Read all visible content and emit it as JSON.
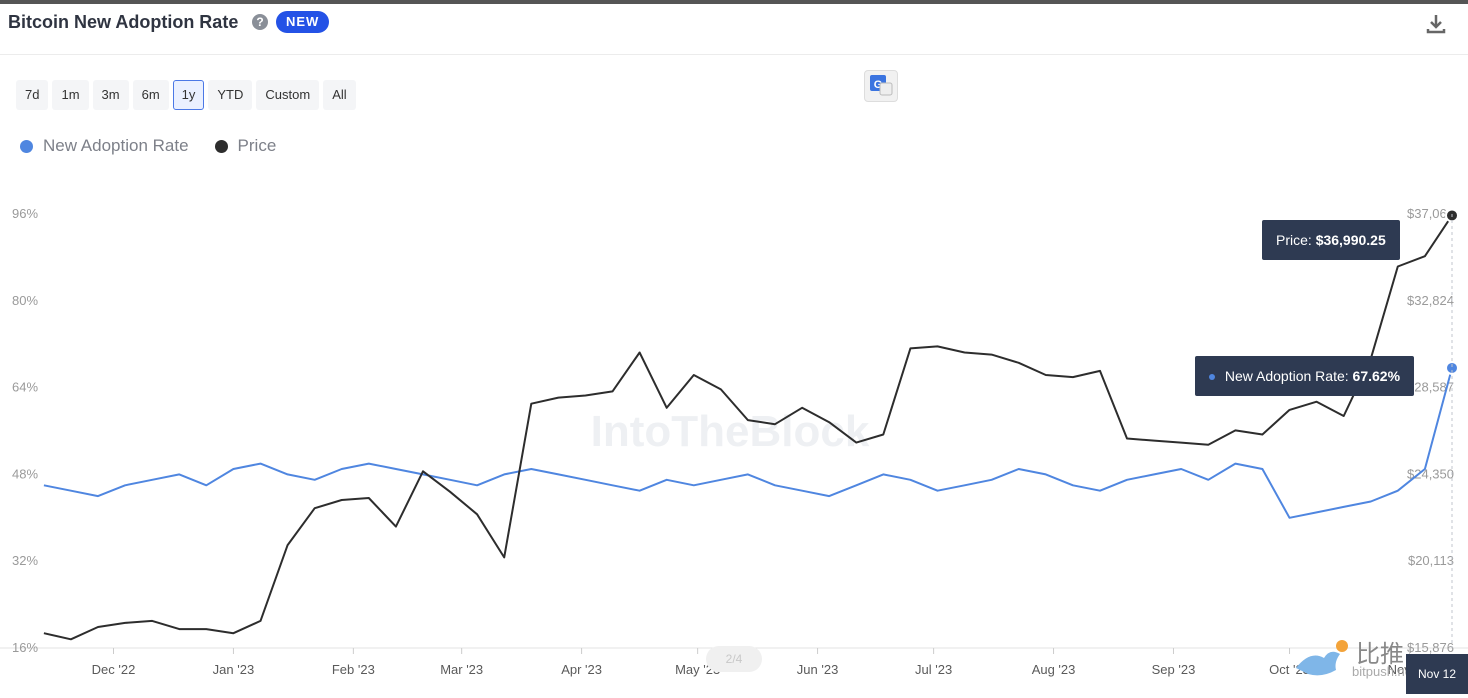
{
  "header": {
    "title": "Bitcoin New Adoption Rate",
    "badge": "NEW"
  },
  "range_buttons": [
    "7d",
    "1m",
    "3m",
    "6m",
    "1y",
    "YTD",
    "Custom",
    "All"
  ],
  "range_active": "1y",
  "legend": {
    "rate": "New Adoption Rate",
    "price": "Price"
  },
  "colors": {
    "rate": "#4f86e0",
    "price": "#2d2d2d",
    "badge": "#2452e6",
    "tooltip": "#2e3a52"
  },
  "tooltips": {
    "price_label": "Price:",
    "price_value": "$36,990.25",
    "rate_label": "New Adoption Rate:",
    "rate_value": "67.62%"
  },
  "pager_text": "2/4",
  "date_chip": "Nov 12",
  "watermark": {
    "brand": "IntoTheBlock",
    "cn": "比推",
    "site": "bitpush.news"
  },
  "chart_data": {
    "type": "line",
    "xlabels": [
      "Dec '22",
      "Jan '23",
      "Feb '23",
      "Mar '23",
      "Apr '23",
      "May '23",
      "Jun '23",
      "Jul '23",
      "Aug '23",
      "Sep '23",
      "Oct '23",
      "Nov '23"
    ],
    "left_axis": {
      "ticks": [
        "96%",
        "80%",
        "64%",
        "48%",
        "32%",
        "16%"
      ],
      "range": [
        16,
        96
      ]
    },
    "right_axis": {
      "ticks": [
        "$37,061",
        "$32,824",
        "$28,587",
        "$24,350",
        "$20,113",
        "$15,876"
      ],
      "range": [
        15876,
        37061
      ]
    },
    "series": [
      {
        "name": "New Adoption Rate",
        "axis": "left",
        "points": [
          [
            "2022-11-13",
            46
          ],
          [
            "2022-11-20",
            45
          ],
          [
            "2022-11-27",
            44
          ],
          [
            "2022-12-04",
            46
          ],
          [
            "2022-12-11",
            47
          ],
          [
            "2022-12-18",
            48
          ],
          [
            "2022-12-25",
            46
          ],
          [
            "2023-01-01",
            49
          ],
          [
            "2023-01-08",
            50
          ],
          [
            "2023-01-15",
            48
          ],
          [
            "2023-01-22",
            47
          ],
          [
            "2023-01-29",
            49
          ],
          [
            "2023-02-05",
            50
          ],
          [
            "2023-02-12",
            49
          ],
          [
            "2023-02-19",
            48
          ],
          [
            "2023-02-26",
            47
          ],
          [
            "2023-03-05",
            46
          ],
          [
            "2023-03-12",
            48
          ],
          [
            "2023-03-19",
            49
          ],
          [
            "2023-03-26",
            48
          ],
          [
            "2023-04-02",
            47
          ],
          [
            "2023-04-09",
            46
          ],
          [
            "2023-04-16",
            45
          ],
          [
            "2023-04-23",
            47
          ],
          [
            "2023-04-30",
            46
          ],
          [
            "2023-05-07",
            47
          ],
          [
            "2023-05-14",
            48
          ],
          [
            "2023-05-21",
            46
          ],
          [
            "2023-05-28",
            45
          ],
          [
            "2023-06-04",
            44
          ],
          [
            "2023-06-11",
            46
          ],
          [
            "2023-06-18",
            48
          ],
          [
            "2023-06-25",
            47
          ],
          [
            "2023-07-02",
            45
          ],
          [
            "2023-07-09",
            46
          ],
          [
            "2023-07-16",
            47
          ],
          [
            "2023-07-23",
            49
          ],
          [
            "2023-07-30",
            48
          ],
          [
            "2023-08-06",
            46
          ],
          [
            "2023-08-13",
            45
          ],
          [
            "2023-08-20",
            47
          ],
          [
            "2023-08-27",
            48
          ],
          [
            "2023-09-03",
            49
          ],
          [
            "2023-09-10",
            47
          ],
          [
            "2023-09-17",
            50
          ],
          [
            "2023-09-24",
            49
          ],
          [
            "2023-10-01",
            40
          ],
          [
            "2023-10-08",
            41
          ],
          [
            "2023-10-15",
            42
          ],
          [
            "2023-10-22",
            43
          ],
          [
            "2023-10-29",
            45
          ],
          [
            "2023-11-05",
            49
          ],
          [
            "2023-11-12",
            67.62
          ]
        ]
      },
      {
        "name": "Price",
        "axis": "right",
        "points": [
          [
            "2022-11-13",
            16600
          ],
          [
            "2022-11-20",
            16300
          ],
          [
            "2022-11-27",
            16900
          ],
          [
            "2022-12-04",
            17100
          ],
          [
            "2022-12-11",
            17200
          ],
          [
            "2022-12-18",
            16800
          ],
          [
            "2022-12-25",
            16800
          ],
          [
            "2023-01-01",
            16600
          ],
          [
            "2023-01-08",
            17200
          ],
          [
            "2023-01-15",
            20900
          ],
          [
            "2023-01-22",
            22700
          ],
          [
            "2023-01-29",
            23100
          ],
          [
            "2023-02-05",
            23200
          ],
          [
            "2023-02-12",
            21800
          ],
          [
            "2023-02-19",
            24500
          ],
          [
            "2023-02-26",
            23500
          ],
          [
            "2023-03-05",
            22400
          ],
          [
            "2023-03-12",
            20300
          ],
          [
            "2023-03-19",
            27800
          ],
          [
            "2023-03-26",
            28100
          ],
          [
            "2023-04-02",
            28200
          ],
          [
            "2023-04-09",
            28400
          ],
          [
            "2023-04-16",
            30300
          ],
          [
            "2023-04-23",
            27600
          ],
          [
            "2023-04-30",
            29200
          ],
          [
            "2023-05-07",
            28500
          ],
          [
            "2023-05-14",
            27000
          ],
          [
            "2023-05-21",
            26800
          ],
          [
            "2023-05-28",
            27600
          ],
          [
            "2023-06-04",
            26900
          ],
          [
            "2023-06-11",
            25900
          ],
          [
            "2023-06-18",
            26300
          ],
          [
            "2023-06-25",
            30500
          ],
          [
            "2023-07-02",
            30600
          ],
          [
            "2023-07-09",
            30300
          ],
          [
            "2023-07-16",
            30200
          ],
          [
            "2023-07-23",
            29800
          ],
          [
            "2023-07-30",
            29200
          ],
          [
            "2023-08-06",
            29100
          ],
          [
            "2023-08-13",
            29400
          ],
          [
            "2023-08-20",
            26100
          ],
          [
            "2023-08-27",
            26000
          ],
          [
            "2023-09-03",
            25900
          ],
          [
            "2023-09-10",
            25800
          ],
          [
            "2023-09-17",
            26500
          ],
          [
            "2023-09-24",
            26300
          ],
          [
            "2023-10-01",
            27500
          ],
          [
            "2023-10-08",
            27900
          ],
          [
            "2023-10-15",
            27200
          ],
          [
            "2023-10-22",
            30000
          ],
          [
            "2023-10-29",
            34500
          ],
          [
            "2023-11-05",
            35000
          ],
          [
            "2023-11-12",
            36990.25
          ]
        ]
      }
    ],
    "grid": false,
    "legend_position": "top-left"
  }
}
